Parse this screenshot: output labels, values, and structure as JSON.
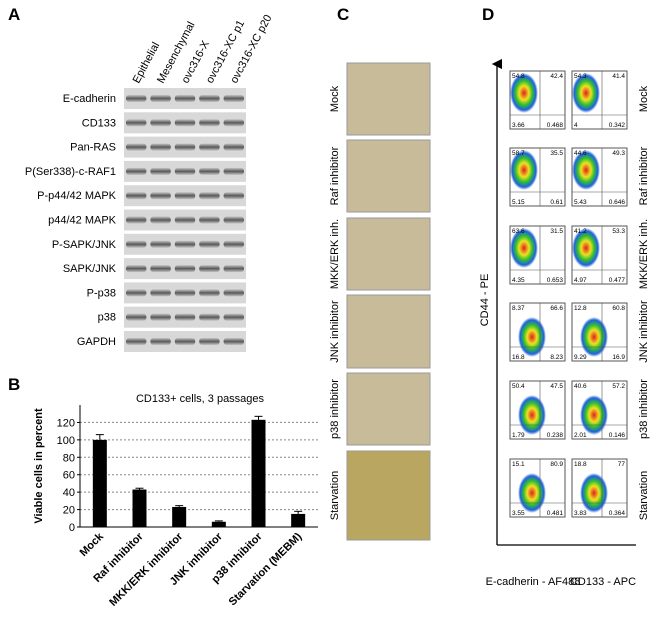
{
  "panels": [
    "A",
    "B",
    "C",
    "D"
  ],
  "panel_a": {
    "lanes": [
      "Epithelial",
      "Mesenchymal",
      "ovc316-X",
      "ovc316-XC p1",
      "ovc316-XC p20"
    ],
    "rows": [
      "E-cadherin",
      "CD133",
      "Pan-RAS",
      "P(Ser338)-c-RAF1",
      "P-p44/42 MAPK",
      "p44/42 MAPK",
      "P-SAPK/JNK",
      "SAPK/JNK",
      "P-p38",
      "p38",
      "GAPDH"
    ]
  },
  "chart_data": {
    "type": "bar",
    "title": "CD133+ cells, 3 passages",
    "y_label": "Viable cells in percent",
    "categories": [
      "Mock",
      "Raf inhibitor",
      "MKK/ERK inhibitor",
      "JNK inhibitor",
      "p38 inhibitor",
      "Starvation (MEBM)"
    ],
    "values": [
      100,
      43,
      23,
      6,
      123,
      15
    ],
    "errors": [
      6,
      1.5,
      1.5,
      1,
      4,
      3
    ],
    "color": "#000000",
    "ylim": [
      0,
      140
    ],
    "yticks": [
      0,
      20,
      40,
      60,
      80,
      100,
      120
    ],
    "grid": true
  },
  "panel_c": {
    "rows": [
      "Mock",
      "Raf inhibitor",
      "MKK/ERK inh.",
      "JNK inhibitor",
      "p38 inhibitor",
      "Starvation"
    ]
  },
  "panel_d": {
    "y_label": "CD44 - PE",
    "x_labels": [
      "E-cadherin - AF488",
      "CD133 - APC"
    ],
    "rows": [
      "Mock",
      "Raf inhibitor",
      "MKK/ERK inh.",
      "JNK inhibitor",
      "p38 inhibitor",
      "Starvation"
    ],
    "quadrants": [
      [
        [
          "54.8",
          "42.4",
          "3.66",
          "0.468"
        ],
        [
          "54.3",
          "41.4",
          "4",
          "0.342"
        ]
      ],
      [
        [
          "58.7",
          "35.5",
          "5.15",
          "0.61"
        ],
        [
          "44.6",
          "49.3",
          "5.43",
          "0.646"
        ]
      ],
      [
        [
          "63.6",
          "31.5",
          "4.35",
          "0.653"
        ],
        [
          "41.2",
          "53.3",
          "4.97",
          "0.477"
        ]
      ],
      [
        [
          "8.37",
          "66.6",
          "16.8",
          "8.23"
        ],
        [
          "12.8",
          "60.8",
          "9.29",
          "16.9"
        ]
      ],
      [
        [
          "50.4",
          "47.5",
          "1.79",
          "0.238"
        ],
        [
          "40.6",
          "57.2",
          "2.01",
          "0.146"
        ]
      ],
      [
        [
          "15.1",
          "80.9",
          "3.55",
          "0.481"
        ],
        [
          "18.8",
          "77",
          "3.83",
          "0.364"
        ]
      ]
    ]
  }
}
